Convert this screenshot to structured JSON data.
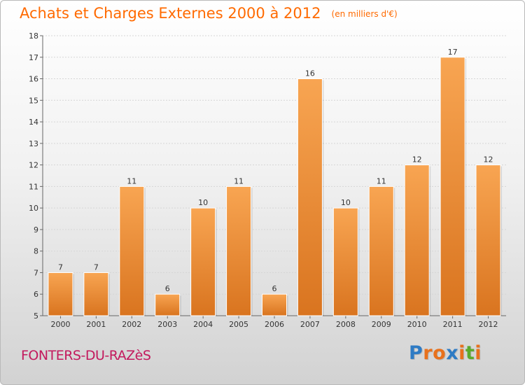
{
  "header": {
    "title": "Achats et Charges Externes 2000 à 2012",
    "subtitle": "(en milliers d'€)"
  },
  "footer": {
    "city": "FONTERS-DU-RAZèS",
    "logo_letters": [
      "P",
      "r",
      "o",
      "x",
      "i",
      "t",
      "i"
    ],
    "logo_colors": [
      "#2e7bc4",
      "#e8711c",
      "#e8711c",
      "#2e7bc4",
      "#e8711c",
      "#5aaa2b",
      "#e8711c"
    ]
  },
  "colors": {
    "title": "#ff6a00",
    "bar_light": "#f8a552",
    "bar_dark": "#d9741f",
    "city": "#c3195d"
  },
  "chart_data": {
    "type": "bar",
    "title": "Achats et Charges Externes 2000 à 2012",
    "subtitle": "(en milliers d'€)",
    "categories": [
      "2000",
      "2001",
      "2002",
      "2003",
      "2004",
      "2005",
      "2006",
      "2007",
      "2008",
      "2009",
      "2010",
      "2011",
      "2012"
    ],
    "values": [
      7,
      7,
      11,
      6,
      10,
      11,
      6,
      16,
      10,
      11,
      12,
      17,
      12
    ],
    "ylim": [
      5,
      18
    ],
    "yticks": [
      5,
      6,
      7,
      8,
      9,
      10,
      11,
      12,
      13,
      14,
      15,
      16,
      17,
      18
    ],
    "grid": true,
    "xlabel": "",
    "ylabel": ""
  }
}
